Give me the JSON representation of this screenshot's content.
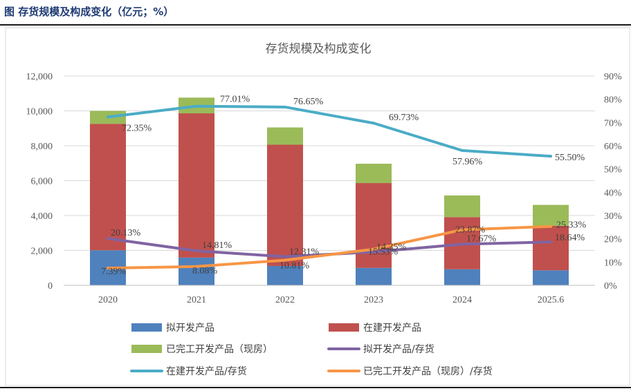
{
  "figure_title": "图 存货规模及构成变化（亿元；%）",
  "chart_data": {
    "type": "bar",
    "title": "存货规模及构成变化",
    "categories": [
      "2020",
      "2021",
      "2022",
      "2023",
      "2024",
      "2025.6"
    ],
    "stacked": true,
    "y_left": {
      "lim": [
        0,
        12000
      ],
      "ticks": [
        "0",
        "2,000",
        "4,000",
        "6,000",
        "8,000",
        "10,000",
        "12,000"
      ]
    },
    "y_right": {
      "lim": [
        0,
        90
      ],
      "ticks": [
        "0%",
        "10%",
        "20%",
        "30%",
        "40%",
        "50%",
        "60%",
        "70%",
        "80%",
        "90%"
      ]
    },
    "bar_series": [
      {
        "name": "拟开发产品",
        "color": "#4f81bd",
        "values": [
          2010,
          1590,
          1110,
          1000,
          920,
          860
        ]
      },
      {
        "name": "在建开发产品",
        "color": "#c0504d",
        "values": [
          7250,
          8270,
          6950,
          4860,
          2990,
          2550
        ]
      },
      {
        "name": "已完工开发产品（现房）",
        "color": "#9bbb59",
        "values": [
          740,
          900,
          990,
          1110,
          1240,
          1200
        ]
      }
    ],
    "line_series": [
      {
        "name": "拟开发产品/存货",
        "color": "#8064a2",
        "values": [
          20.13,
          14.81,
          12.31,
          14.35,
          17.67,
          18.64
        ],
        "labels": [
          "20.13%",
          "14.81%",
          "12.31%",
          "14.35%",
          "17.67%",
          "18.64%"
        ]
      },
      {
        "name": "在建开发产品/存货",
        "color": "#4bacc6",
        "values": [
          72.35,
          77.01,
          76.65,
          69.73,
          57.96,
          55.5
        ],
        "labels": [
          "72.35%",
          "77.01%",
          "76.65%",
          "69.73%",
          "57.96%",
          "55.50%"
        ]
      },
      {
        "name": "已完工开发产品（现房）/存货",
        "color": "#f79646",
        "values": [
          7.39,
          8.08,
          10.81,
          15.53,
          23.87,
          25.33
        ],
        "labels": [
          "7.39%",
          "8.08%",
          "10.81%",
          "15.53%",
          "23.87%",
          "25.33%"
        ]
      }
    ],
    "legend_position": "bottom"
  }
}
